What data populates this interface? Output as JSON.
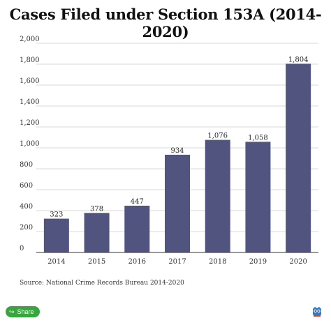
{
  "chart_data": {
    "type": "bar",
    "title": "Cases Filed under Section 153A (2014-2020)",
    "xlabel": "",
    "ylabel": "",
    "categories": [
      "2014",
      "2015",
      "2016",
      "2017",
      "2018",
      "2019",
      "2020"
    ],
    "values": [
      323,
      378,
      447,
      934,
      1076,
      1058,
      1804
    ],
    "data_labels": [
      "323",
      "378",
      "447",
      "934",
      "1,076",
      "1,058",
      "1,804"
    ],
    "ylim": [
      0,
      2000
    ],
    "yticks": [
      0,
      200,
      400,
      600,
      800,
      1000,
      1200,
      1400,
      1600,
      1800,
      2000
    ],
    "ytick_labels": [
      "0",
      "200",
      "400",
      "600",
      "800",
      "1,000",
      "1,200",
      "1,400",
      "1,600",
      "1,800",
      "2,000"
    ],
    "grid": true,
    "bar_color": "#525480",
    "grid_color": "#d9d9d9"
  },
  "source": "Source: National Crime Records Bureau 2014-2020",
  "share": {
    "label": "Share",
    "icon": "share-icon",
    "color": "#39a53f"
  },
  "logo": {
    "icon": "owl-logo-icon"
  }
}
